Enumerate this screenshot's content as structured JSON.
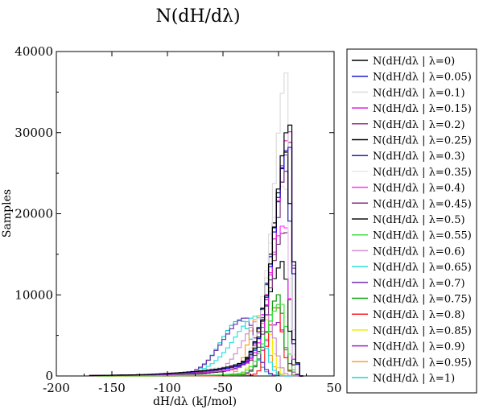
{
  "chart_data": {
    "type": "line",
    "title": "N(dH/dλ)",
    "xlabel": "dH/dλ (kJ/mol)",
    "ylabel": "Samples",
    "xlim": [
      -200,
      50
    ],
    "ylim": [
      0,
      40000
    ],
    "x_ticks": [
      -200,
      -150,
      -100,
      -50,
      0,
      50
    ],
    "y_ticks": [
      0,
      10000,
      20000,
      30000,
      40000
    ],
    "grid": false,
    "legend_position": "right",
    "step": true,
    "series": [
      {
        "name": "N(dH/dλ | λ=0)",
        "color": "#000000",
        "peak_x": 10,
        "peak_y": 33000,
        "left_width": 22,
        "right_width": 4,
        "tail": 0.14
      },
      {
        "name": "N(dH/dλ | λ=0.05)",
        "color": "#1a1ad6",
        "peak_x": 10,
        "peak_y": 29000,
        "left_width": 23,
        "right_width": 4,
        "tail": 0.13
      },
      {
        "name": "N(dH/dλ | λ=0.1)",
        "color": "#dcdcdc",
        "peak_x": 8,
        "peak_y": 36000,
        "left_width": 21,
        "right_width": 4,
        "tail": 0.14
      },
      {
        "name": "N(dH/dλ | λ=0.15)",
        "color": "#e020e0",
        "peak_x": 10,
        "peak_y": 28500,
        "left_width": 23,
        "right_width": 4,
        "tail": 0.13
      },
      {
        "name": "N(dH/dλ | λ=0.2)",
        "color": "#8a3a8a",
        "peak_x": 10,
        "peak_y": 28000,
        "left_width": 22,
        "right_width": 4,
        "tail": 0.13
      },
      {
        "name": "N(dH/dλ | λ=0.25)",
        "color": "#000000",
        "peak_x": 8,
        "peak_y": 29000,
        "left_width": 24,
        "right_width": 4,
        "tail": 0.12
      },
      {
        "name": "N(dH/dλ | λ=0.3)",
        "color": "#2020b0",
        "peak_x": 8,
        "peak_y": 27000,
        "left_width": 24,
        "right_width": 4,
        "tail": 0.12
      },
      {
        "name": "N(dH/dλ | λ=0.35)",
        "color": "#e6e6e6",
        "peak_x": 6,
        "peak_y": 24000,
        "left_width": 25,
        "right_width": 5,
        "tail": 0.12
      },
      {
        "name": "N(dH/dλ | λ=0.4)",
        "color": "#ff30ff",
        "peak_x": 6,
        "peak_y": 18000,
        "left_width": 26,
        "right_width": 5,
        "tail": 0.11
      },
      {
        "name": "N(dH/dλ | λ=0.45)",
        "color": "#7a2f7a",
        "peak_x": 6,
        "peak_y": 17000,
        "left_width": 27,
        "right_width": 5,
        "tail": 0.11
      },
      {
        "name": "N(dH/dλ | λ=0.5)",
        "color": "#101010",
        "peak_x": 4,
        "peak_y": 14000,
        "left_width": 28,
        "right_width": 6,
        "tail": 0.1
      },
      {
        "name": "N(dH/dλ | λ=0.55)",
        "color": "#40e040",
        "peak_x": 2,
        "peak_y": 9500,
        "left_width": 22,
        "right_width": 7,
        "tail": 0.06
      },
      {
        "name": "N(dH/dλ | λ=0.6)",
        "color": "#d090d0",
        "peak_x": -10,
        "peak_y": 7500,
        "left_width": 35,
        "right_width": 9,
        "tail": 0.05
      },
      {
        "name": "N(dH/dλ | λ=0.65)",
        "color": "#30e0e0",
        "peak_x": -20,
        "peak_y": 7000,
        "left_width": 40,
        "right_width": 10,
        "tail": 0.05
      },
      {
        "name": "N(dH/dλ | λ=0.7)",
        "color": "#7030b0",
        "peak_x": -30,
        "peak_y": 7500,
        "left_width": 35,
        "right_width": 12,
        "tail": 0.04
      },
      {
        "name": "N(dH/dλ | λ=0.75)",
        "color": "#10a010",
        "peak_x": 0,
        "peak_y": 9500,
        "left_width": 18,
        "right_width": 6,
        "tail": 0.04
      },
      {
        "name": "N(dH/dλ | λ=0.8)",
        "color": "#ff2020",
        "peak_x": -2,
        "peak_y": 8800,
        "left_width": 12,
        "right_width": 7,
        "tail": 0.03
      },
      {
        "name": "N(dH/dλ | λ=0.85)",
        "color": "#f0f000",
        "peak_x": -12,
        "peak_y": 7500,
        "left_width": 14,
        "right_width": 8,
        "tail": 0.03
      },
      {
        "name": "N(dH/dλ | λ=0.9)",
        "color": "#a020c0",
        "peak_x": 0,
        "peak_y": 7000,
        "left_width": 20,
        "right_width": 8,
        "tail": 0.03
      },
      {
        "name": "N(dH/dλ | λ=0.95)",
        "color": "#ffa020",
        "peak_x": -18,
        "peak_y": 7000,
        "left_width": 16,
        "right_width": 10,
        "tail": 0.03
      },
      {
        "name": "N(dH/dλ | λ=1)",
        "color": "#20d0d0",
        "peak_x": -35,
        "peak_y": 7300,
        "left_width": 30,
        "right_width": 14,
        "tail": 0.04
      }
    ]
  }
}
